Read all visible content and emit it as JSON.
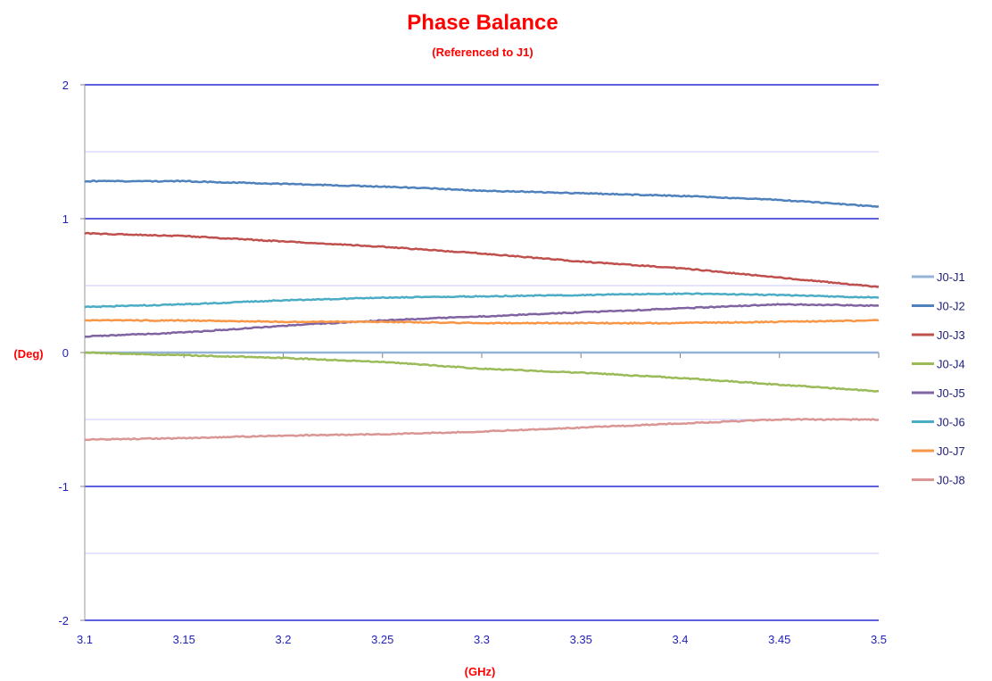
{
  "chart_data": {
    "type": "line",
    "title": "Phase Balance",
    "subtitle": "(Referenced  to J1)",
    "xlabel": "(GHz)",
    "ylabel": "(Deg)",
    "xlim": [
      3.1,
      3.5
    ],
    "ylim": [
      -2,
      2
    ],
    "x_ticks": [
      "3.1",
      "3.15",
      "3.2",
      "3.25",
      "3.3",
      "3.35",
      "3.4",
      "3.45",
      "3.5"
    ],
    "y_ticks": [
      "2",
      "1",
      "0",
      "-1",
      "-2"
    ],
    "major_grid": [
      -2,
      -1,
      1,
      2
    ],
    "minor_grid": [
      -1.5,
      -0.5,
      0.5,
      1.5
    ],
    "legend_position": "right",
    "x": [
      3.1,
      3.15,
      3.2,
      3.25,
      3.3,
      3.35,
      3.4,
      3.45,
      3.5
    ],
    "series": [
      {
        "name": "J0-J1",
        "color": "#95b3d7",
        "values": [
          0,
          0,
          0,
          0,
          0,
          0,
          0,
          0,
          0
        ]
      },
      {
        "name": "J0-J2",
        "color": "#4f81bd",
        "values": [
          1.28,
          1.28,
          1.26,
          1.24,
          1.21,
          1.19,
          1.17,
          1.14,
          1.09
        ]
      },
      {
        "name": "J0-J3",
        "color": "#c0504d",
        "values": [
          0.89,
          0.87,
          0.83,
          0.79,
          0.74,
          0.68,
          0.63,
          0.56,
          0.49
        ]
      },
      {
        "name": "J0-J4",
        "color": "#9bbb59",
        "values": [
          0.0,
          -0.02,
          -0.04,
          -0.07,
          -0.12,
          -0.15,
          -0.19,
          -0.24,
          -0.29
        ]
      },
      {
        "name": "J0-J5",
        "color": "#8064a2",
        "values": [
          0.12,
          0.15,
          0.2,
          0.24,
          0.27,
          0.3,
          0.33,
          0.36,
          0.35
        ]
      },
      {
        "name": "J0-J6",
        "color": "#4bacc6",
        "values": [
          0.34,
          0.36,
          0.39,
          0.41,
          0.42,
          0.43,
          0.44,
          0.43,
          0.41
        ]
      },
      {
        "name": "J0-J7",
        "color": "#f79646",
        "values": [
          0.24,
          0.24,
          0.23,
          0.23,
          0.22,
          0.22,
          0.22,
          0.23,
          0.24
        ]
      },
      {
        "name": "J0-J8",
        "color": "#d99694",
        "values": [
          -0.65,
          -0.64,
          -0.62,
          -0.61,
          -0.59,
          -0.56,
          -0.53,
          -0.5,
          -0.5
        ]
      }
    ],
    "colors": {
      "title": "#ff0000",
      "axis_label": "#ff0000",
      "tick_label": "#1f1fb4",
      "major_grid": "#0000c8",
      "minor_grid": "#c8c8ff",
      "axis_line": "#9a9a9a"
    }
  }
}
